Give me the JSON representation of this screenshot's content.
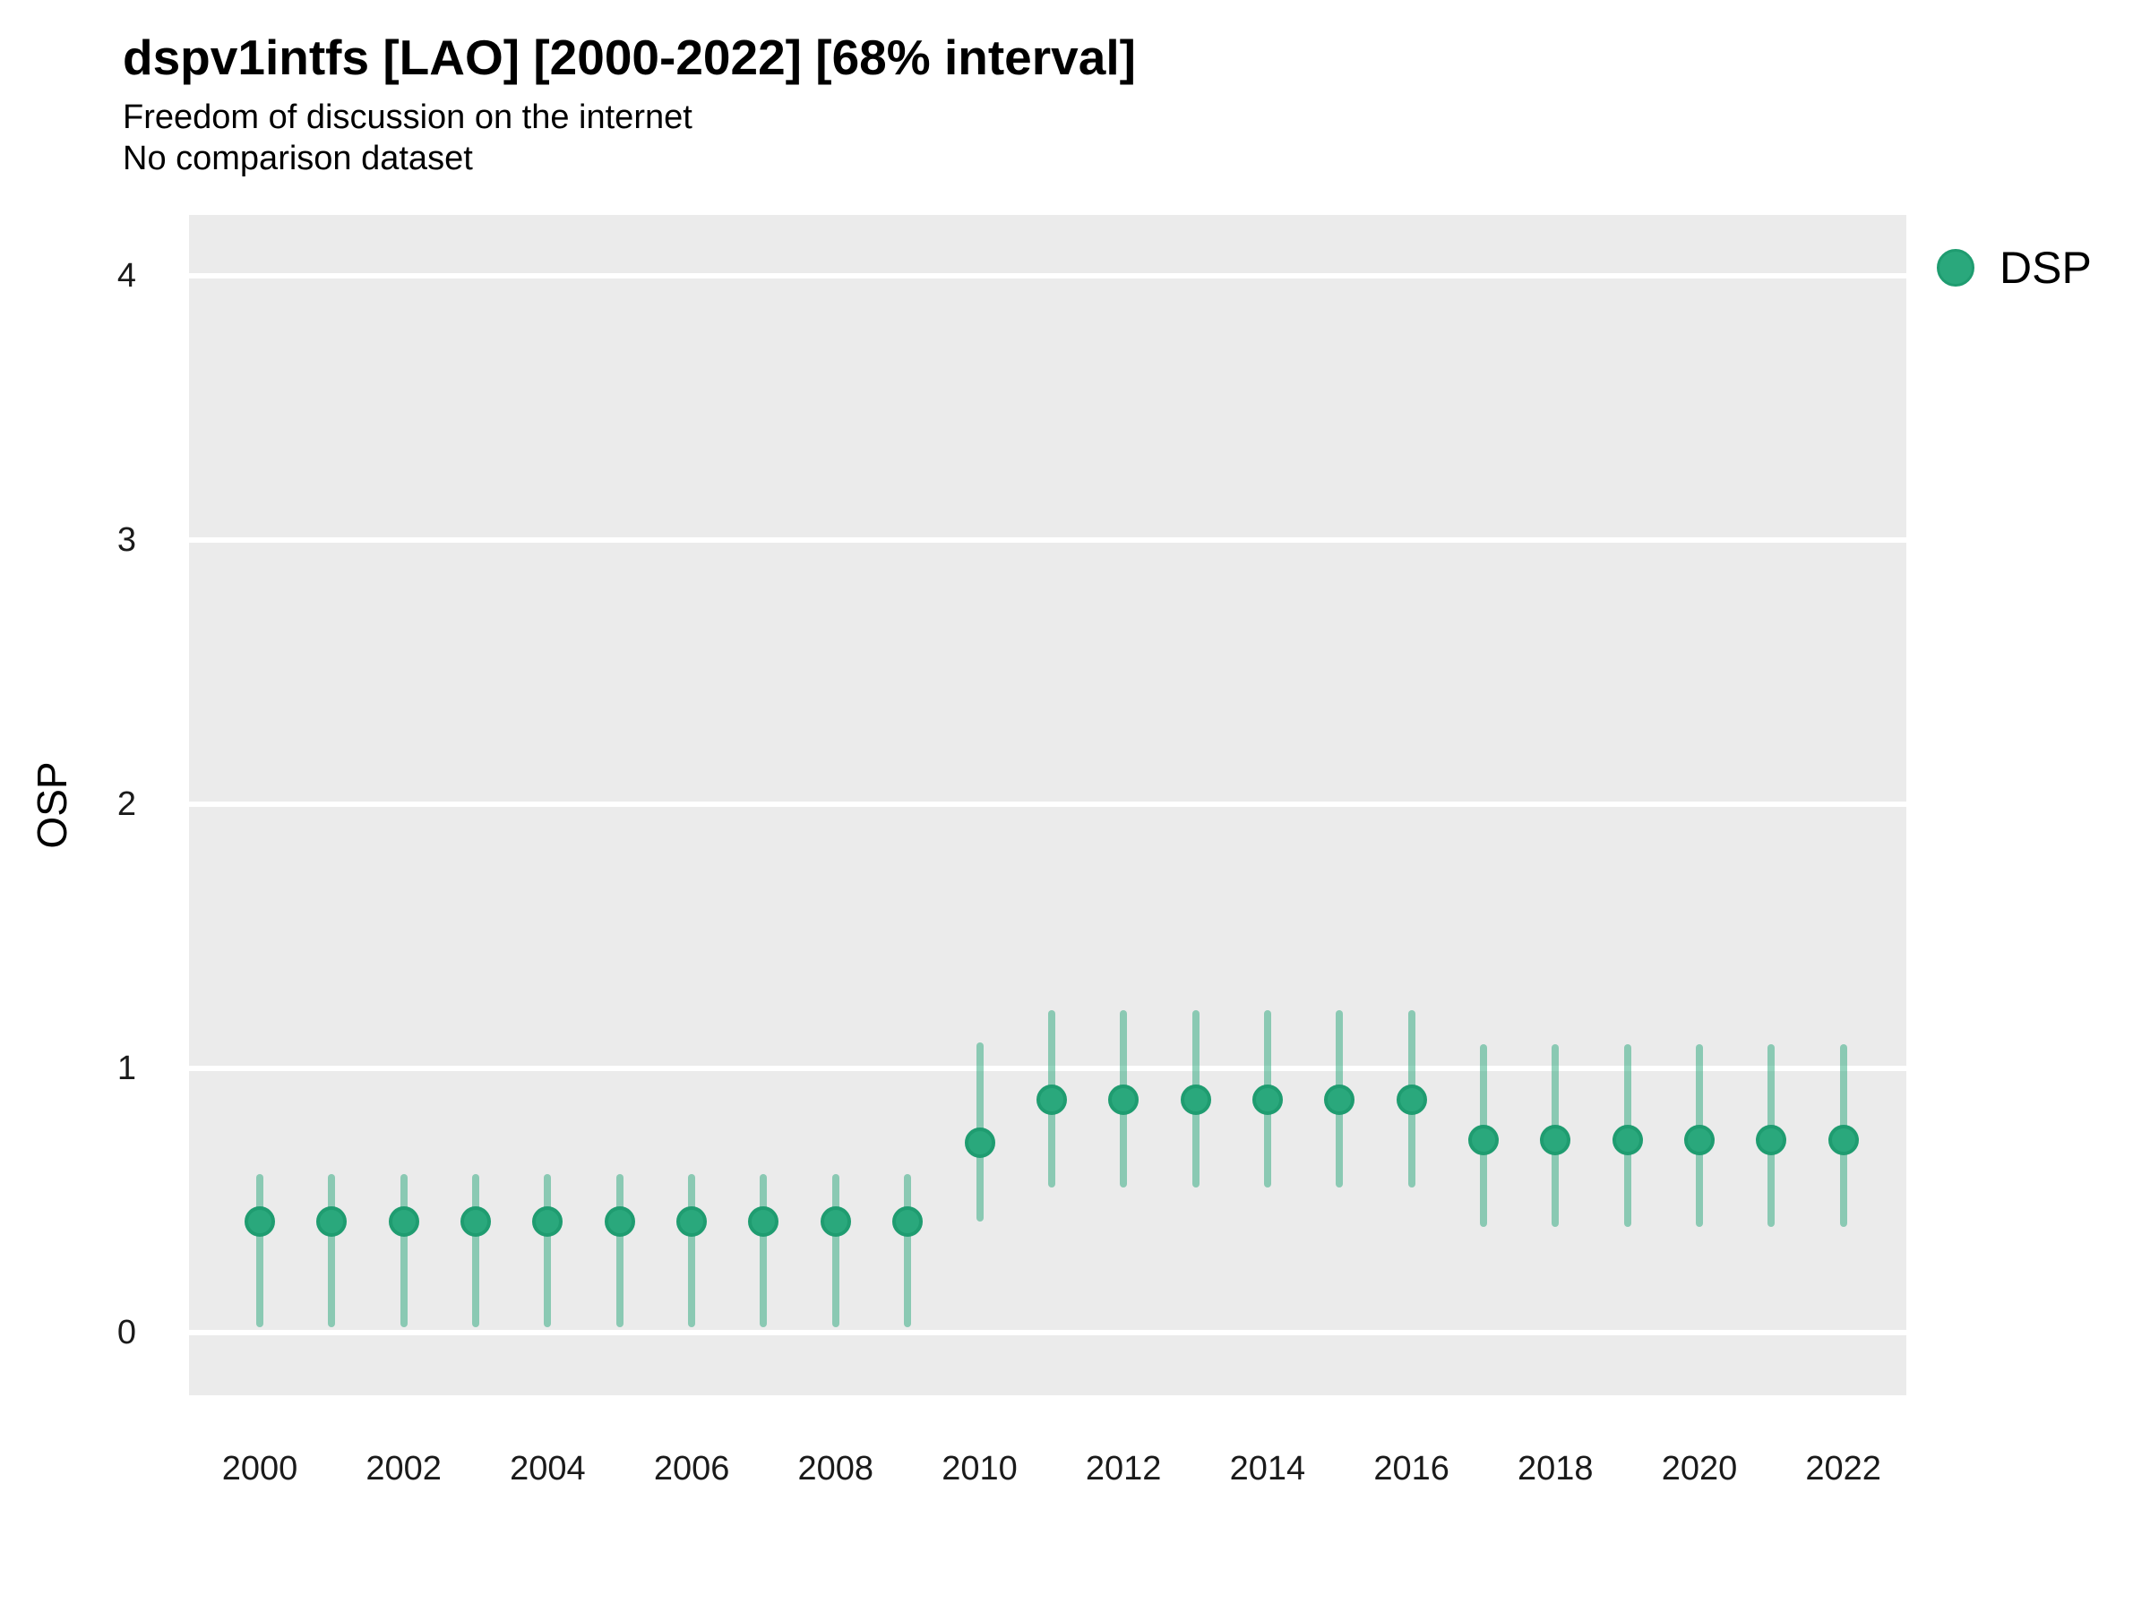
{
  "header": {
    "title": "dspv1intfs [LAO] [2000-2022] [68% interval]",
    "subtitle1": "Freedom of discussion on the internet",
    "subtitle2": "No comparison dataset"
  },
  "legend": {
    "label": "DSP"
  },
  "axes": {
    "y_title": "OSP",
    "y_tick_labels": [
      "0",
      "1",
      "2",
      "3",
      "4"
    ],
    "x_tick_labels": [
      "2000",
      "2002",
      "2004",
      "2006",
      "2008",
      "2010",
      "2012",
      "2014",
      "2016",
      "2018",
      "2020",
      "2022"
    ]
  },
  "colors": {
    "point_fill": "#2AA87C",
    "point_stroke": "#1F9C70",
    "interval_band": "rgba(42, 168, 124, 0.5)",
    "panel_background": "#EBEBEB",
    "gridline": "#FFFFFF",
    "page_background": "#FFFFFF",
    "text": "#000000"
  },
  "chart_data": {
    "type": "scatter",
    "subtype": "pointrange",
    "title": "dspv1intfs [LAO] [2000-2022] [68% interval]",
    "subtitle": "Freedom of discussion on the internet",
    "note": "No comparison dataset",
    "interval": "68%",
    "xlabel": "",
    "ylabel": "OSP",
    "x": [
      2000,
      2001,
      2002,
      2003,
      2004,
      2005,
      2006,
      2007,
      2008,
      2009,
      2010,
      2011,
      2012,
      2013,
      2014,
      2015,
      2016,
      2017,
      2018,
      2019,
      2020,
      2021,
      2022
    ],
    "series": [
      {
        "name": "DSP",
        "estimate": [
          0.42,
          0.42,
          0.42,
          0.42,
          0.42,
          0.42,
          0.42,
          0.42,
          0.42,
          0.42,
          0.72,
          0.88,
          0.88,
          0.88,
          0.88,
          0.88,
          0.88,
          0.73,
          0.73,
          0.73,
          0.73,
          0.73,
          0.73
        ],
        "lower": [
          0.02,
          0.02,
          0.02,
          0.02,
          0.02,
          0.02,
          0.02,
          0.02,
          0.02,
          0.02,
          0.42,
          0.55,
          0.55,
          0.55,
          0.55,
          0.55,
          0.55,
          0.4,
          0.4,
          0.4,
          0.4,
          0.4,
          0.4
        ],
        "upper": [
          0.6,
          0.6,
          0.6,
          0.6,
          0.6,
          0.6,
          0.6,
          0.6,
          0.6,
          0.6,
          1.1,
          1.22,
          1.22,
          1.22,
          1.22,
          1.22,
          1.22,
          1.09,
          1.09,
          1.09,
          1.09,
          1.09,
          1.09
        ]
      }
    ],
    "y_ticks": [
      0,
      1,
      2,
      3,
      4
    ],
    "x_ticks": [
      2000,
      2002,
      2004,
      2006,
      2008,
      2010,
      2012,
      2014,
      2016,
      2018,
      2020,
      2022
    ],
    "ylim": [
      -0.24,
      4.24
    ],
    "xlim": [
      1999,
      2023
    ],
    "grid": "major horizontal white gridlines on grey panel, no minor gridlines",
    "legend_position": "right-top"
  }
}
